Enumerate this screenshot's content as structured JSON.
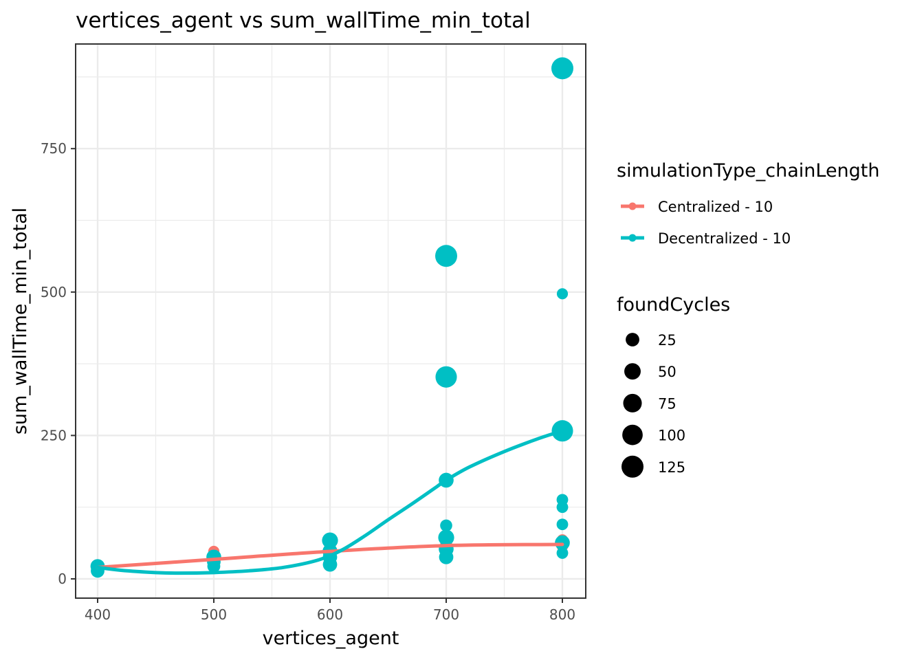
{
  "chart_data": {
    "type": "scatter",
    "title": "vertices_agent  vs  sum_wallTime_min_total",
    "xlabel": "vertices_agent",
    "ylabel": "sum_wallTime_min_total",
    "xlim": [
      380,
      820
    ],
    "ylim": [
      -35,
      930
    ],
    "x_ticks": [
      400,
      500,
      600,
      700,
      800
    ],
    "x_tick_labels": [
      "400",
      "500",
      "600",
      "700",
      "800"
    ],
    "y_ticks": [
      0,
      250,
      500,
      750
    ],
    "y_tick_labels": [
      "0",
      "250",
      "500",
      "750"
    ],
    "grid": true,
    "legend_placement": "right",
    "color_legend": {
      "title": "simulationType_chainLength",
      "entries": [
        {
          "label": "Centralized - 10",
          "color": "#f8766d"
        },
        {
          "label": "Decentralized - 10",
          "color": "#00bfc4"
        }
      ]
    },
    "size_legend": {
      "title": "foundCycles",
      "entries": [
        {
          "label": "25",
          "value": 25
        },
        {
          "label": "50",
          "value": 50
        },
        {
          "label": "75",
          "value": 75
        },
        {
          "label": "100",
          "value": 100
        },
        {
          "label": "125",
          "value": 125
        }
      ]
    },
    "series": [
      {
        "name": "Centralized - 10",
        "color": "#f8766d",
        "points": [
          {
            "x": 400,
            "y": 18,
            "size": 10
          },
          {
            "x": 500,
            "y": 48,
            "size": 10
          },
          {
            "x": 500,
            "y": 38,
            "size": 12
          },
          {
            "x": 600,
            "y": 58,
            "size": 12
          },
          {
            "x": 600,
            "y": 45,
            "size": 14
          },
          {
            "x": 700,
            "y": 60,
            "size": 14
          },
          {
            "x": 700,
            "y": 52,
            "size": 12
          },
          {
            "x": 800,
            "y": 68,
            "size": 10
          },
          {
            "x": 800,
            "y": 58,
            "size": 14
          }
        ],
        "smooth": [
          [
            400,
            20
          ],
          [
            500,
            34
          ],
          [
            600,
            48
          ],
          [
            700,
            58
          ],
          [
            800,
            60
          ]
        ]
      },
      {
        "name": "Decentralized - 10",
        "color": "#00bfc4",
        "points": [
          {
            "x": 400,
            "y": 22,
            "size": 30
          },
          {
            "x": 400,
            "y": 14,
            "size": 25
          },
          {
            "x": 500,
            "y": 38,
            "size": 35
          },
          {
            "x": 500,
            "y": 22,
            "size": 20
          },
          {
            "x": 500,
            "y": 30,
            "size": 25
          },
          {
            "x": 600,
            "y": 67,
            "size": 45
          },
          {
            "x": 600,
            "y": 48,
            "size": 35
          },
          {
            "x": 600,
            "y": 38,
            "size": 30
          },
          {
            "x": 600,
            "y": 25,
            "size": 30
          },
          {
            "x": 700,
            "y": 563,
            "size": 125
          },
          {
            "x": 700,
            "y": 352,
            "size": 115
          },
          {
            "x": 700,
            "y": 172,
            "size": 35
          },
          {
            "x": 700,
            "y": 93,
            "size": 15
          },
          {
            "x": 700,
            "y": 72,
            "size": 45
          },
          {
            "x": 700,
            "y": 52,
            "size": 35
          },
          {
            "x": 700,
            "y": 38,
            "size": 30
          },
          {
            "x": 800,
            "y": 890,
            "size": 125
          },
          {
            "x": 800,
            "y": 497,
            "size": 10
          },
          {
            "x": 800,
            "y": 258,
            "size": 115
          },
          {
            "x": 800,
            "y": 138,
            "size": 12
          },
          {
            "x": 800,
            "y": 125,
            "size": 12
          },
          {
            "x": 800,
            "y": 95,
            "size": 12
          },
          {
            "x": 800,
            "y": 63,
            "size": 35
          },
          {
            "x": 800,
            "y": 45,
            "size": 12
          }
        ],
        "smooth": [
          [
            400,
            20
          ],
          [
            420,
            15
          ],
          [
            450,
            11
          ],
          [
            470,
            10
          ],
          [
            500,
            11
          ],
          [
            530,
            14
          ],
          [
            560,
            20
          ],
          [
            590,
            33
          ],
          [
            610,
            50
          ],
          [
            630,
            75
          ],
          [
            650,
            103
          ],
          [
            670,
            130
          ],
          [
            690,
            158
          ],
          [
            700,
            172
          ],
          [
            720,
            195
          ],
          [
            750,
            222
          ],
          [
            780,
            245
          ],
          [
            800,
            258
          ]
        ]
      }
    ]
  }
}
